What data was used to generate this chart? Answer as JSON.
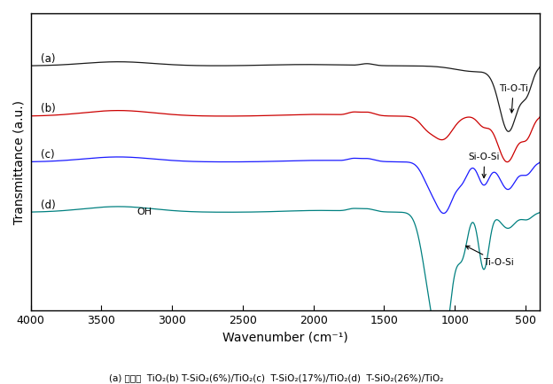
{
  "xlabel": "Wavenumber (cm⁻¹)",
  "ylabel": "Transmittance (a.u.)",
  "xlim": [
    4000,
    400
  ],
  "series_labels": [
    "(a)",
    "(b)",
    "(c)",
    "(d)"
  ],
  "series_colors": [
    "#1a1a1a",
    "#cc0000",
    "#1a1aff",
    "#008080"
  ],
  "offsets": [
    0.72,
    0.5,
    0.3,
    0.08
  ],
  "caption": "(a) 판상형  TiO₂(b) T-SiO₂(6%)/TiO₂(c)  T-SiO₂(17%)/TiO₂(d)  T-SiO₂(26%)/TiO₂",
  "background_color": "#ffffff",
  "xticks": [
    4000,
    3500,
    3000,
    2500,
    2000,
    1500,
    1000,
    500
  ]
}
